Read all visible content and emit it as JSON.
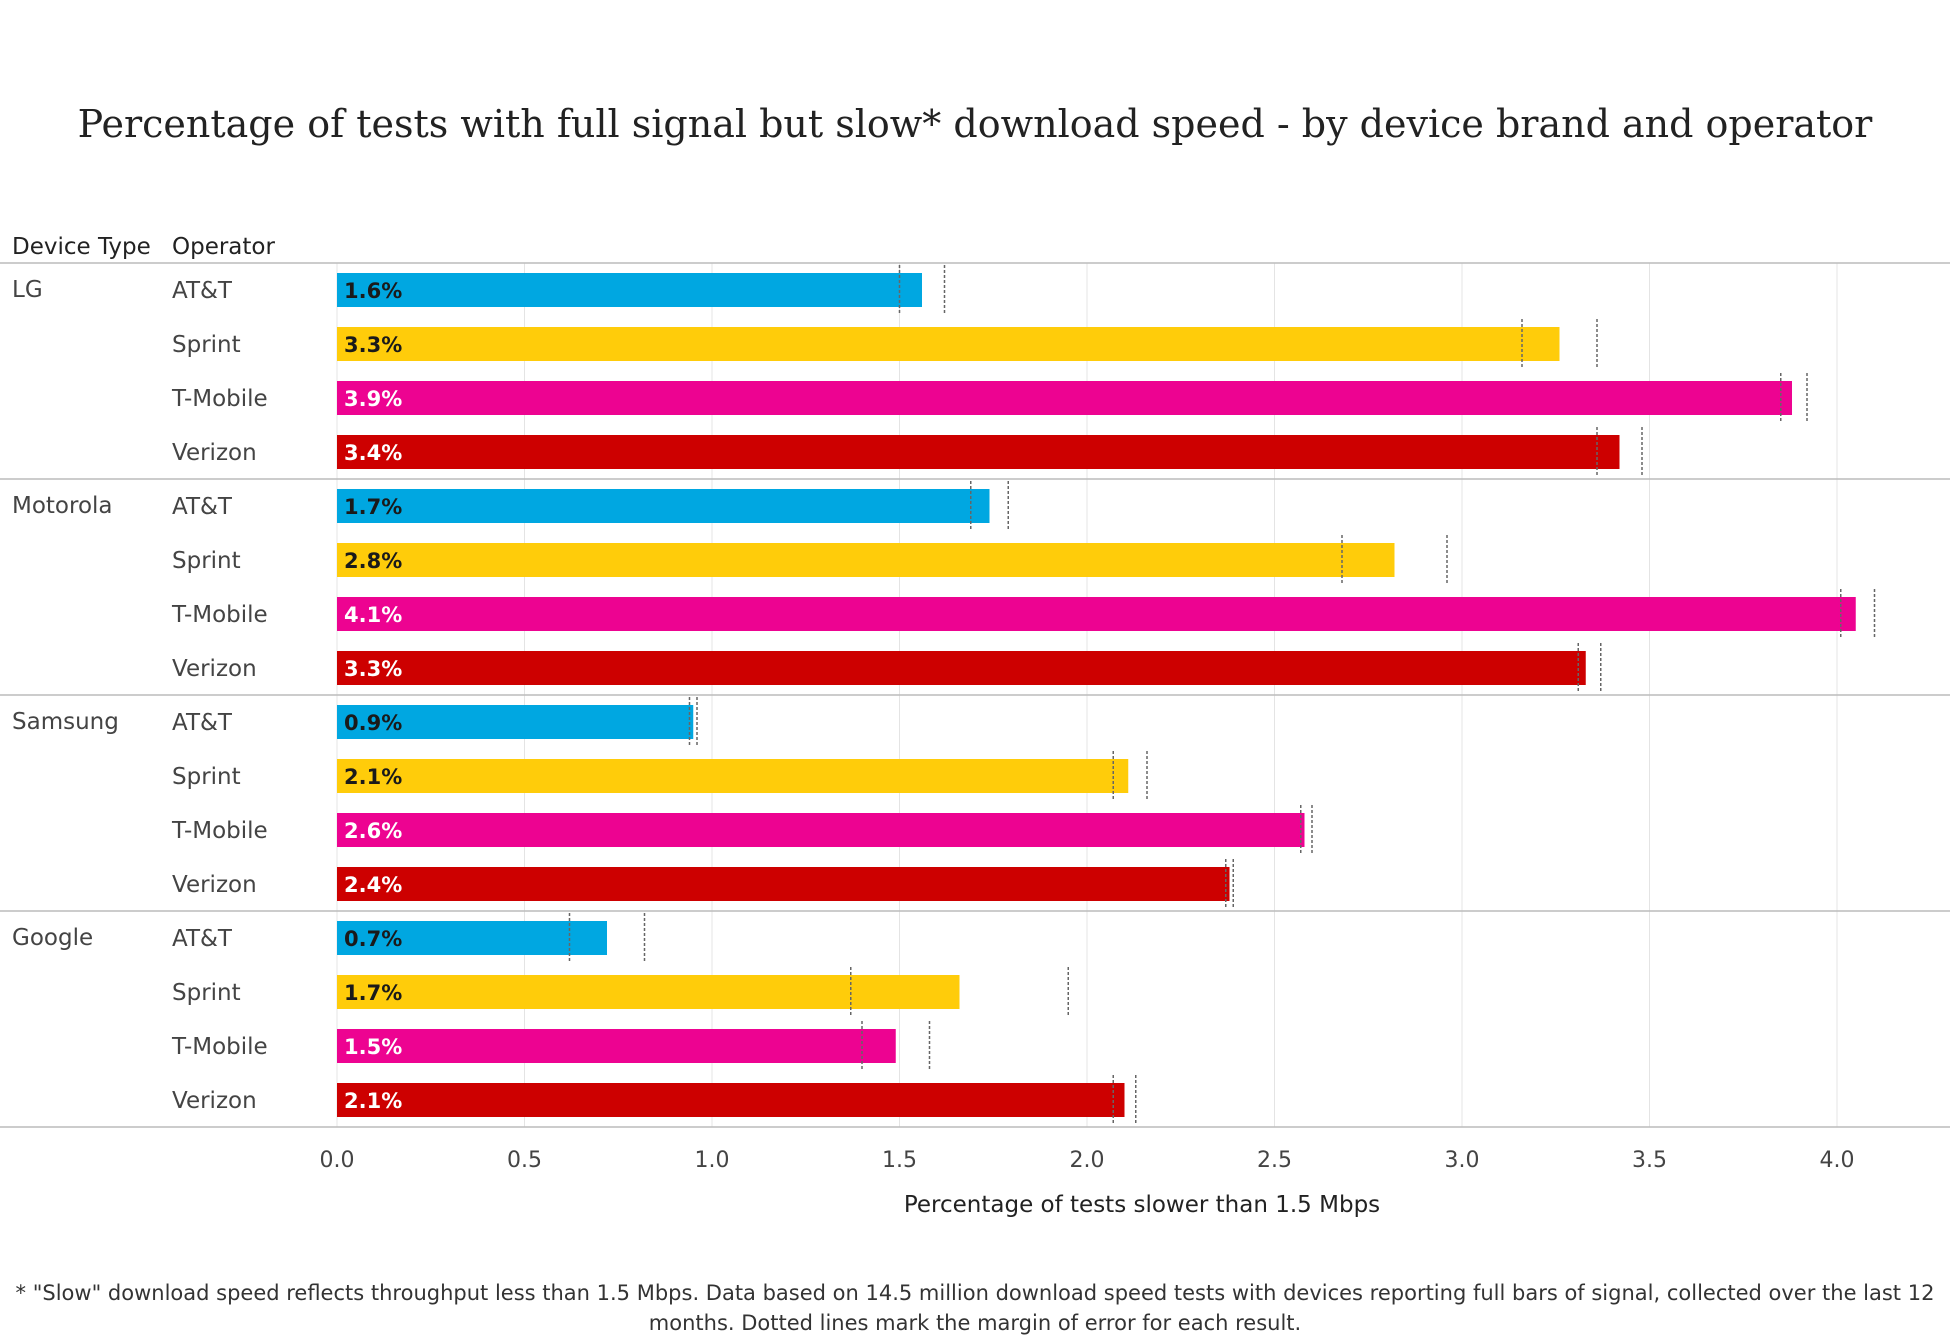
{
  "colors": {
    "AT&T": "#00a7e1",
    "Sprint": "#ffcc0a",
    "T-Mobile": "#ed0391",
    "Verizon": "#cd0000"
  },
  "chart_data": {
    "type": "bar",
    "orientation": "horizontal",
    "title": "Percentage of tests with full signal but slow* download speed - by device brand and operator",
    "xlabel": "Percentage of tests slower than 1.5 Mbps",
    "column_headers": [
      "Device Type",
      "Operator"
    ],
    "xlim": [
      0,
      4.2
    ],
    "xticks": [
      "0.0",
      "0.5",
      "1.0",
      "1.5",
      "2.0",
      "2.5",
      "3.0",
      "3.5",
      "4.0"
    ],
    "grid": true,
    "groups": [
      {
        "device": "LG",
        "rows": [
          {
            "operator": "AT&T",
            "value": 1.56,
            "label": "1.6%",
            "ci": [
              1.5,
              1.62
            ]
          },
          {
            "operator": "Sprint",
            "value": 3.26,
            "label": "3.3%",
            "ci": [
              3.16,
              3.36
            ]
          },
          {
            "operator": "T-Mobile",
            "value": 3.88,
            "label": "3.9%",
            "ci": [
              3.85,
              3.92
            ]
          },
          {
            "operator": "Verizon",
            "value": 3.42,
            "label": "3.4%",
            "ci": [
              3.36,
              3.48
            ]
          }
        ]
      },
      {
        "device": "Motorola",
        "rows": [
          {
            "operator": "AT&T",
            "value": 1.74,
            "label": "1.7%",
            "ci": [
              1.69,
              1.79
            ]
          },
          {
            "operator": "Sprint",
            "value": 2.82,
            "label": "2.8%",
            "ci": [
              2.68,
              2.96
            ]
          },
          {
            "operator": "T-Mobile",
            "value": 4.05,
            "label": "4.1%",
            "ci": [
              4.01,
              4.1
            ]
          },
          {
            "operator": "Verizon",
            "value": 3.33,
            "label": "3.3%",
            "ci": [
              3.31,
              3.37
            ]
          }
        ]
      },
      {
        "device": "Samsung",
        "rows": [
          {
            "operator": "AT&T",
            "value": 0.95,
            "label": "0.9%",
            "ci": [
              0.94,
              0.96
            ]
          },
          {
            "operator": "Sprint",
            "value": 2.11,
            "label": "2.1%",
            "ci": [
              2.07,
              2.16
            ]
          },
          {
            "operator": "T-Mobile",
            "value": 2.58,
            "label": "2.6%",
            "ci": [
              2.57,
              2.6
            ]
          },
          {
            "operator": "Verizon",
            "value": 2.38,
            "label": "2.4%",
            "ci": [
              2.37,
              2.39
            ]
          }
        ]
      },
      {
        "device": "Google",
        "rows": [
          {
            "operator": "AT&T",
            "value": 0.72,
            "label": "0.7%",
            "ci": [
              0.62,
              0.82
            ]
          },
          {
            "operator": "Sprint",
            "value": 1.66,
            "label": "1.7%",
            "ci": [
              1.37,
              1.95
            ]
          },
          {
            "operator": "T-Mobile",
            "value": 1.49,
            "label": "1.5%",
            "ci": [
              1.4,
              1.58
            ]
          },
          {
            "operator": "Verizon",
            "value": 2.1,
            "label": "2.1%",
            "ci": [
              2.07,
              2.13
            ]
          }
        ]
      }
    ],
    "footnote": "* \"Slow\" download speed reflects throughput less than 1.5 Mbps. Data based on 14.5 million download speed tests with devices reporting full bars of signal, collected over the last 12 months. Dotted lines mark the margin of error for each result."
  }
}
